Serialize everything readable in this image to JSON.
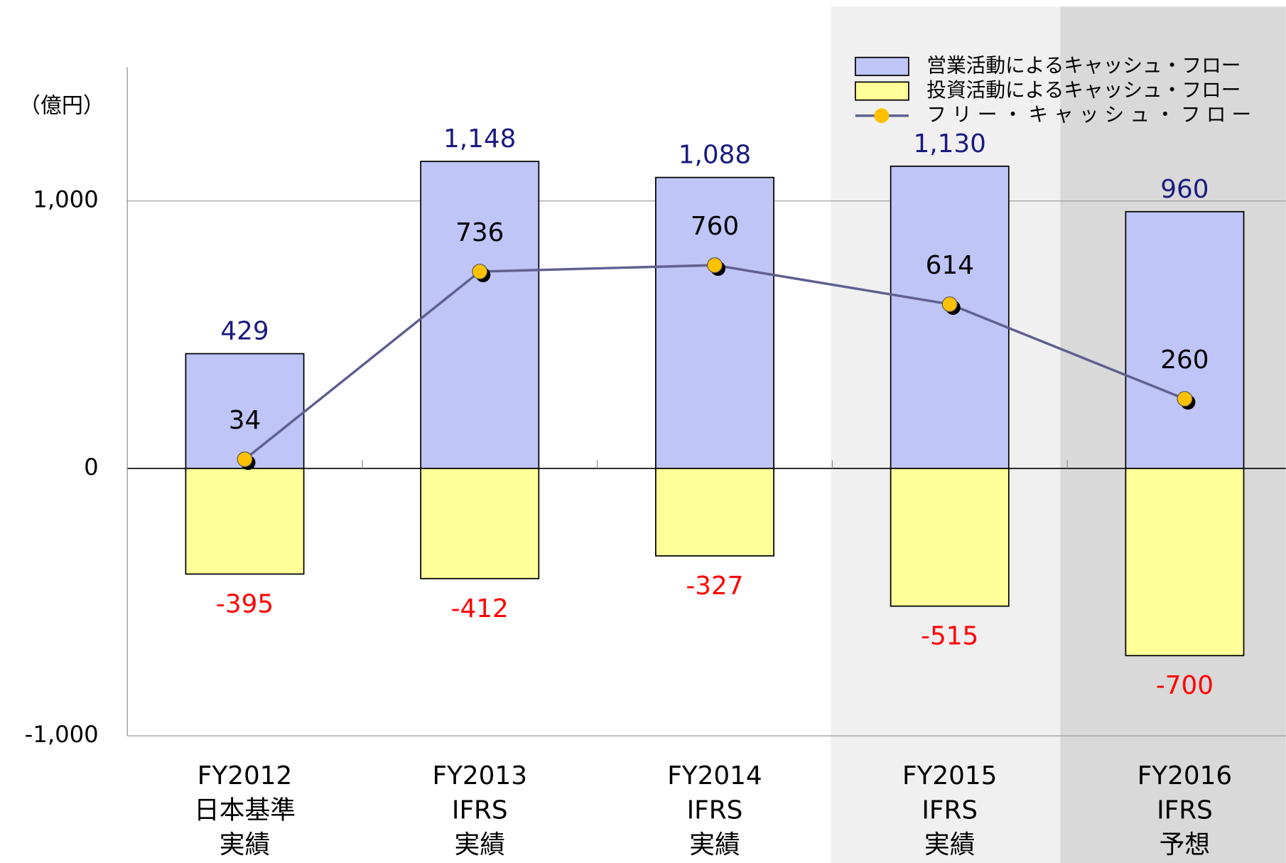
{
  "chart_data": {
    "type": "bar_line",
    "y_label": "（億円）",
    "categories": [
      [
        "FY2012",
        "日本基準",
        "実績"
      ],
      [
        "FY2013",
        "IFRS",
        "実績"
      ],
      [
        "FY2014",
        "IFRS",
        "実績"
      ],
      [
        "FY2015",
        "IFRS",
        "実績"
      ],
      [
        "FY2016",
        "IFRS",
        "予想"
      ]
    ],
    "series": [
      {
        "name": "営業活動によるキャッシュ・フロー",
        "type": "bar",
        "color": "#bfc5f7",
        "label_color": "#1a1a80",
        "values": [
          429,
          1148,
          1088,
          1130,
          960
        ],
        "value_labels": [
          "429",
          "1,148",
          "1,088",
          "1,130",
          "960"
        ]
      },
      {
        "name": "投資活動によるキャッシュ・フロー",
        "type": "bar",
        "color": "#ffff99",
        "label_color": "#ff0000",
        "values": [
          -395,
          -412,
          -327,
          -515,
          -700
        ]
      },
      {
        "name": "フリー・キャッシュ・フロー",
        "type": "line",
        "color": "#5f6090",
        "marker_color": "#ffc000",
        "label_color": "#000000",
        "values": [
          34,
          736,
          760,
          614,
          260
        ]
      }
    ],
    "ylim": [
      -1000,
      1500
    ],
    "yticks": [
      {
        "value": -1000,
        "label": "-1,000"
      },
      0,
      {
        "value": 1000,
        "label": "1,000"
      }
    ],
    "legend": "top-right"
  }
}
